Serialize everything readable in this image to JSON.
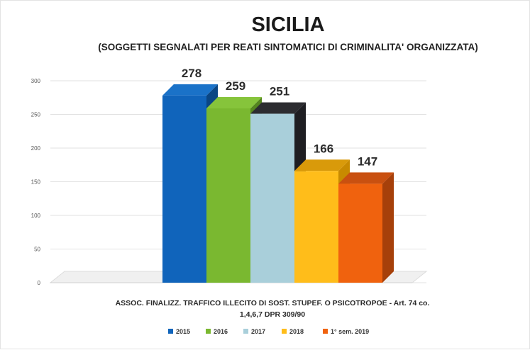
{
  "chart_data": {
    "type": "bar",
    "title": "SICILIA",
    "subtitle": "(SOGGETTI SEGNALATI PER REATI SINTOMATICI DI CRIMINALITA' ORGANIZZATA)",
    "category_label_lines": [
      "ASSOC. FINALIZZ. TRAFFICO ILLECITO DI SOST. STUPEF. O PSICOTROPOE - Art. 74 co.",
      "1,4,6,7 DPR 309/90"
    ],
    "yticks": [
      "0",
      "50",
      "100",
      "150",
      "200",
      "250",
      "300"
    ],
    "ylim": [
      0,
      300
    ],
    "grid": true,
    "legend_position": "bottom",
    "series": [
      {
        "name": "2015",
        "value": 278,
        "label": "278",
        "color": "#1064bb",
        "side": "#0a4684",
        "top": "#1a72c8"
      },
      {
        "name": "2016",
        "value": 259,
        "label": "259",
        "color": "#7ab830",
        "side": "#55861f",
        "top": "#86c43b"
      },
      {
        "name": "2017",
        "value": 251,
        "label": "251",
        "color": "#a9cfda",
        "side": "#1e1e22",
        "top": "#2c2c30"
      },
      {
        "name": "2018",
        "value": 166,
        "label": "166",
        "color": "#ffbd1a",
        "side": "#c88a00",
        "top": "#d99a0a"
      },
      {
        "name": "1° sem. 2019",
        "value": 147,
        "label": "147",
        "color": "#f0620e",
        "side": "#a6400a",
        "top": "#c95010"
      }
    ]
  }
}
